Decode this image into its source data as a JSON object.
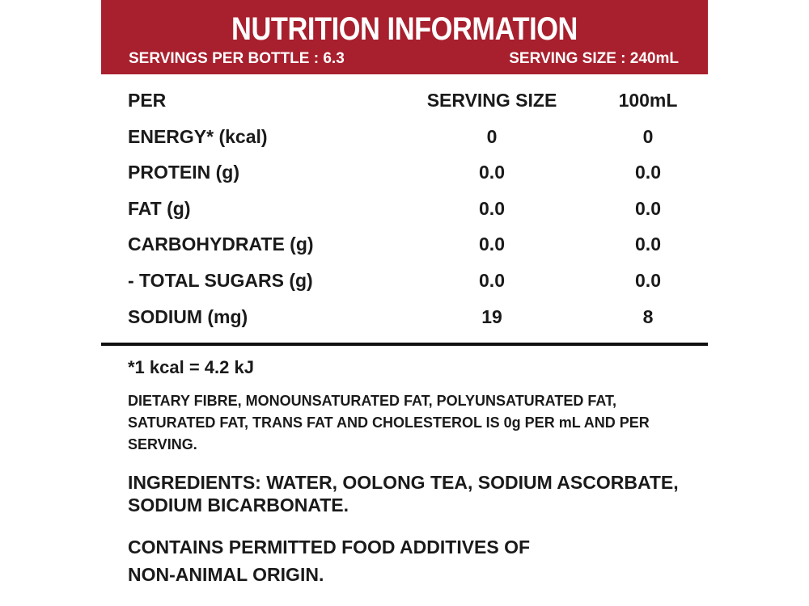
{
  "header": {
    "title": "NUTRITION INFORMATION",
    "servings_per_bottle": "SERVINGS PER BOTTLE : 6.3",
    "serving_size": "SERVING SIZE : 240mL",
    "background_color": "#a81f2d"
  },
  "table": {
    "columns": [
      "PER",
      "SERVING SIZE",
      "100mL"
    ],
    "rows": [
      {
        "name": "ENERGY* (kcal)",
        "serving": "0",
        "per100": "0"
      },
      {
        "name": "PROTEIN (g)",
        "serving": "0.0",
        "per100": "0.0"
      },
      {
        "name": "FAT (g)",
        "serving": "0.0",
        "per100": "0.0"
      },
      {
        "name": "CARBOHYDRATE (g)",
        "serving": "0.0",
        "per100": "0.0"
      },
      {
        "name": "- TOTAL SUGARS (g)",
        "serving": "0.0",
        "per100": "0.0"
      },
      {
        "name": "SODIUM (mg)",
        "serving": "19",
        "per100": "8"
      }
    ]
  },
  "notes": {
    "kcal_conversion": "*1 kcal = 4.2 kJ",
    "fibre_statement": "DIETARY FIBRE, MONOUNSATURATED FAT, POLYUNSATURATED FAT, SATURATED FAT, TRANS FAT AND CHOLESTEROL IS 0g PER mL AND PER SERVING.",
    "ingredients": "INGREDIENTS: WATER, OOLONG TEA, SODIUM ASCORBATE, SODIUM BICARBONATE.",
    "additives": "CONTAINS PERMITTED FOOD ADDITIVES OF NON-ANIMAL ORIGIN."
  }
}
